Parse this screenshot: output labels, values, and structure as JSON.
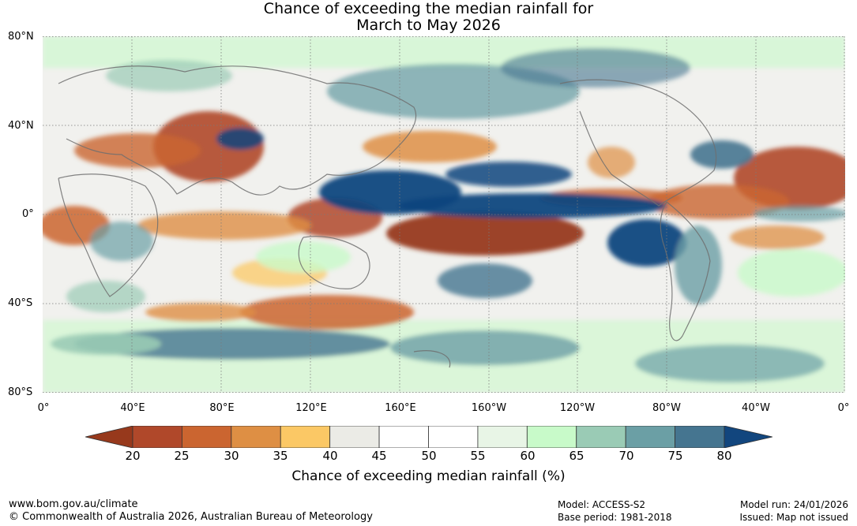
{
  "title": {
    "line1": "Chance of exceeding the median rainfall for",
    "line2": "March to May 2026"
  },
  "axes": {
    "lat_labels": [
      "80°N",
      "40°N",
      "0°",
      "40°S",
      "80°S"
    ],
    "lon_labels": [
      "0°",
      "40°E",
      "80°E",
      "120°E",
      "160°E",
      "160°W",
      "120°W",
      "80°W",
      "40°W",
      "0°"
    ]
  },
  "colorbar": {
    "ticks": [
      "20",
      "25",
      "30",
      "35",
      "40",
      "45",
      "50",
      "55",
      "60",
      "65",
      "70",
      "75",
      "80"
    ],
    "below_color": "#97391c",
    "above_color": "#12467e",
    "colors": [
      "#b0482a",
      "#cb6530",
      "#de8f44",
      "#fbc865",
      "#ebebe6",
      "#ffffff",
      "#ffffff",
      "#e8f5e6",
      "#c8fac9",
      "#9acbb5",
      "#6b9fa5",
      "#457590"
    ],
    "title": "Chance of exceeding median rainfall (%)"
  },
  "footer": {
    "website": "www.bom.gov.au/climate",
    "copyright": "© Commonwealth of Australia 2026, Australian Bureau of Meteorology",
    "model": "Model: ACCESS-S2",
    "base_period": "Base period: 1981-2018",
    "model_run": "Model run: 24/01/2026",
    "issued": "Issued: Map not issued"
  }
}
